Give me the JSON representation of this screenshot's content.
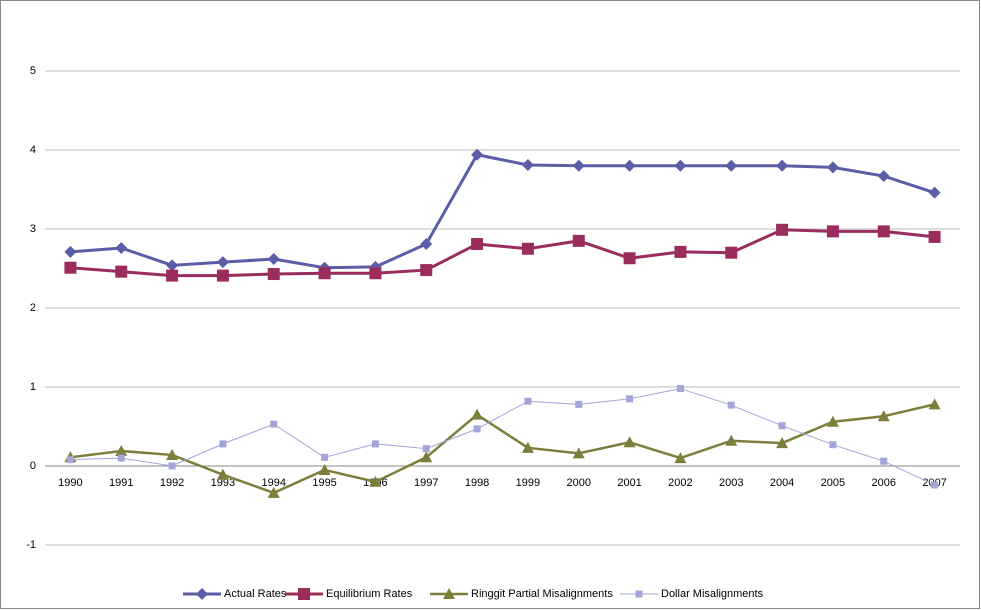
{
  "chart_data": {
    "type": "line",
    "categories": [
      "1990",
      "1991",
      "1992",
      "1993",
      "1994",
      "1995",
      "1996",
      "1997",
      "1998",
      "1999",
      "2000",
      "2001",
      "2002",
      "2003",
      "2004",
      "2005",
      "2006",
      "2007"
    ],
    "series": [
      {
        "name": "Actual Rates",
        "color": "#5b5ea6",
        "marker": "diamond",
        "values": [
          2.71,
          2.76,
          2.54,
          2.58,
          2.62,
          2.51,
          2.52,
          2.81,
          3.94,
          3.81,
          3.8,
          3.8,
          3.8,
          3.8,
          3.8,
          3.78,
          3.67,
          3.46
        ]
      },
      {
        "name": "Equilibrium Rates",
        "color": "#9b2d5e",
        "marker": "square",
        "values": [
          2.51,
          2.46,
          2.41,
          2.41,
          2.43,
          2.44,
          2.44,
          2.48,
          2.81,
          2.75,
          2.85,
          2.63,
          2.71,
          2.7,
          2.99,
          2.97,
          2.97,
          2.9
        ]
      },
      {
        "name": "Ringgit Partial Misalignments",
        "color": "#7d7e3c",
        "marker": "triangle",
        "values": [
          0.11,
          0.19,
          0.14,
          -0.11,
          -0.34,
          -0.05,
          -0.2,
          0.11,
          0.65,
          0.23,
          0.16,
          0.3,
          0.1,
          0.32,
          0.29,
          0.56,
          0.63,
          0.78
        ]
      },
      {
        "name": "Dollar Misalignments",
        "color": "#a3a4d8",
        "marker": "small-square",
        "values": [
          0.08,
          0.1,
          0.0,
          0.28,
          0.53,
          0.11,
          0.28,
          0.22,
          0.47,
          0.82,
          0.78,
          0.85,
          0.98,
          0.77,
          0.51,
          0.27,
          0.06,
          -0.24
        ]
      }
    ],
    "ylim": [
      -1,
      5
    ],
    "yticks": [
      -1,
      0,
      1,
      2,
      3,
      4,
      5
    ],
    "grid": true,
    "legend": "bottom"
  }
}
